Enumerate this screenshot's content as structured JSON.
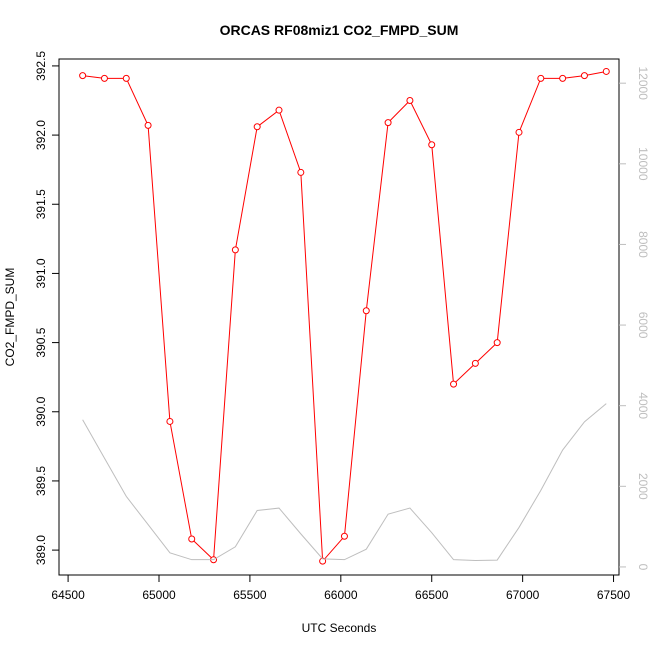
{
  "chart_data": {
    "type": "line",
    "title": "ORCAS RF08miz1 CO2_FMPD_SUM",
    "xlabel": "UTC Seconds",
    "ylabel": "CO2_FMPD_SUM",
    "y2label": "",
    "xlim": [
      64450,
      67530
    ],
    "ylim": [
      388.82,
      392.55
    ],
    "y2lim": [
      -200,
      12600
    ],
    "x_ticks": [
      64500,
      65000,
      65500,
      66000,
      66500,
      67000,
      67500
    ],
    "y_ticks": [
      389.0,
      389.5,
      390.0,
      390.5,
      391.0,
      391.5,
      392.0,
      392.5
    ],
    "y2_ticks": [
      0,
      2000,
      4000,
      6000,
      8000,
      10000,
      12000
    ],
    "x_tick_labels": [
      "64500",
      "65000",
      "65500",
      "66000",
      "66500",
      "67000",
      "67500"
    ],
    "y_tick_labels": [
      "389.0",
      "389.5",
      "390.0",
      "390.5",
      "391.0",
      "391.5",
      "392.0",
      "392.5"
    ],
    "y2_tick_labels": [
      "0",
      "2000",
      "4000",
      "6000",
      "8000",
      "10000",
      "12000"
    ],
    "grid": false,
    "series": [
      {
        "axis": "left",
        "color": "#ff0000",
        "marker": "open-circle",
        "x": [
          64580,
          64700,
          64820,
          64940,
          65060,
          65180,
          65300,
          65420,
          65540,
          65660,
          65780,
          65900,
          66020,
          66140,
          66260,
          66380,
          66500,
          66620,
          66740,
          66860,
          66980,
          67100,
          67220,
          67340,
          67460
        ],
        "y": [
          392.43,
          392.41,
          392.41,
          392.07,
          389.93,
          389.08,
          388.93,
          391.17,
          392.06,
          392.18,
          391.73,
          388.92,
          389.1,
          390.73,
          392.09,
          392.25,
          391.93,
          390.2,
          390.35,
          390.5,
          392.02,
          392.41,
          392.41,
          392.43,
          392.46
        ]
      },
      {
        "axis": "right",
        "color": "#bebebe",
        "marker": "none",
        "x": [
          64580,
          64700,
          64820,
          64940,
          65060,
          65180,
          65300,
          65420,
          65540,
          65660,
          65780,
          65900,
          66020,
          66140,
          66260,
          66380,
          66500,
          66620,
          66740,
          66860,
          66980,
          67100,
          67220,
          67340,
          67460
        ],
        "y": [
          3650,
          2700,
          1750,
          1050,
          350,
          180,
          180,
          500,
          1400,
          1460,
          820,
          200,
          180,
          440,
          1310,
          1460,
          850,
          180,
          160,
          170,
          980,
          1900,
          2900,
          3600,
          4050
        ]
      }
    ]
  }
}
